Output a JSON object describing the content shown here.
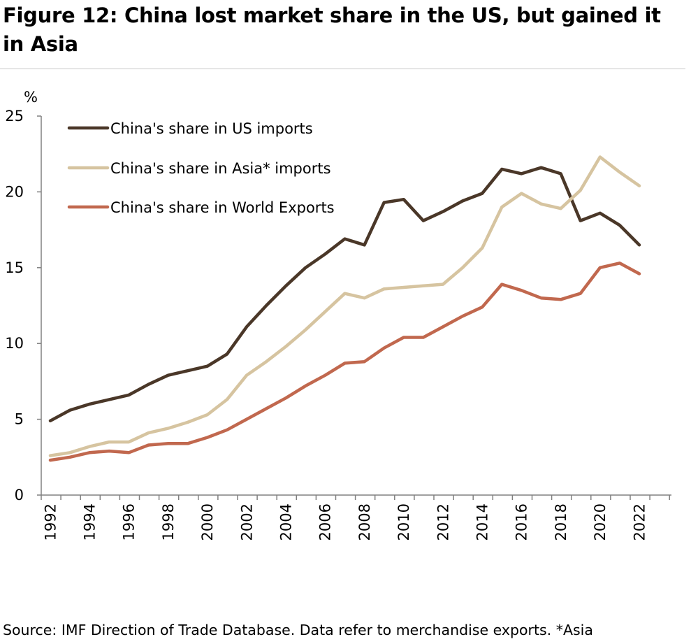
{
  "figure": {
    "title": "Figure 12: China lost market share in the US, but gained it in Asia",
    "source": "Source: IMF Direction of Trade Database. Data refer to merchandise exports. *Asia"
  },
  "chart_data": {
    "type": "line",
    "title": "Figure 12: China lost market share in the US, but gained it in Asia",
    "xlabel": "",
    "ylabel": "%",
    "ylim": [
      0,
      25
    ],
    "yticks": [
      "0",
      "5",
      "10",
      "15",
      "20",
      "25"
    ],
    "xtick_labels": [
      "1992",
      "1994",
      "1996",
      "1998",
      "2000",
      "2002",
      "2004",
      "2006",
      "2008",
      "2010",
      "2012",
      "2014",
      "2016",
      "2018",
      "2020",
      "2022"
    ],
    "x": [
      1992,
      1993,
      1994,
      1995,
      1996,
      1997,
      1998,
      1999,
      2000,
      2001,
      2002,
      2003,
      2004,
      2005,
      2006,
      2007,
      2008,
      2009,
      2010,
      2011,
      2012,
      2013,
      2014,
      2015,
      2016,
      2017,
      2018,
      2019,
      2020,
      2021,
      2022
    ],
    "grid": false,
    "legend_position": "top-left",
    "series": [
      {
        "name": "China's share in US imports",
        "color": "#4a3728",
        "values": [
          4.9,
          5.6,
          6.0,
          6.3,
          6.6,
          7.3,
          7.9,
          8.2,
          8.5,
          9.3,
          11.1,
          12.5,
          13.8,
          15.0,
          15.9,
          16.9,
          16.5,
          19.3,
          19.5,
          18.1,
          18.7,
          19.4,
          19.9,
          21.5,
          21.2,
          21.6,
          21.2,
          18.1,
          18.6,
          17.8,
          16.5
        ]
      },
      {
        "name": "China's share in Asia* imports",
        "color": "#d6c4a0",
        "values": [
          2.6,
          2.8,
          3.2,
          3.5,
          3.5,
          4.1,
          4.4,
          4.8,
          5.3,
          6.3,
          7.9,
          8.8,
          9.8,
          10.9,
          12.1,
          13.3,
          13.0,
          13.6,
          13.7,
          13.8,
          13.9,
          15.0,
          16.3,
          19.0,
          19.9,
          19.2,
          18.9,
          20.1,
          22.3,
          21.3,
          20.4
        ]
      },
      {
        "name": "China's share in World Exports",
        "color": "#c1684e",
        "values": [
          2.3,
          2.5,
          2.8,
          2.9,
          2.8,
          3.3,
          3.4,
          3.4,
          3.8,
          4.3,
          5.0,
          5.7,
          6.4,
          7.2,
          7.9,
          8.7,
          8.8,
          9.7,
          10.4,
          10.4,
          11.1,
          11.8,
          12.4,
          13.9,
          13.5,
          13.0,
          12.9,
          13.3,
          15.0,
          15.3,
          14.6
        ]
      }
    ]
  }
}
